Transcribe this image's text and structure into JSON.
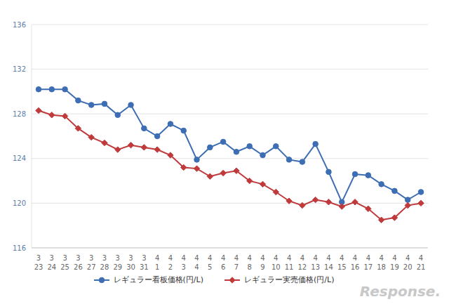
{
  "chart_data": {
    "type": "line",
    "categories": [
      "3\n23",
      "3\n24",
      "3\n25",
      "3\n26",
      "3\n27",
      "3\n28",
      "3\n29",
      "3\n30",
      "3\n31",
      "4\n1",
      "4\n2",
      "4\n3",
      "4\n4",
      "4\n5",
      "4\n6",
      "4\n7",
      "4\n8",
      "4\n9",
      "4\n10",
      "4\n11",
      "4\n12",
      "4\n13",
      "4\n14",
      "4\n15",
      "4\n16",
      "4\n17",
      "4\n18",
      "4\n19",
      "4\n20",
      "4\n21"
    ],
    "series": [
      {
        "name": "レギュラー看板価格(円/L)",
        "color": "#3d6eb4",
        "marker": "circle",
        "values": [
          130.2,
          130.2,
          130.2,
          129.2,
          128.8,
          128.9,
          127.9,
          128.8,
          126.7,
          126.0,
          127.1,
          126.5,
          123.9,
          125.0,
          125.5,
          124.6,
          125.1,
          124.3,
          125.1,
          123.9,
          123.7,
          125.3,
          122.8,
          120.1,
          122.6,
          122.5,
          121.7,
          121.1,
          120.3,
          121.0
        ]
      },
      {
        "name": "レギュラー実売価格(円/L)",
        "color": "#c0393b",
        "marker": "diamond",
        "values": [
          128.3,
          127.9,
          127.8,
          126.7,
          125.9,
          125.4,
          124.8,
          125.2,
          125.0,
          124.8,
          124.3,
          123.2,
          123.1,
          122.4,
          122.7,
          122.9,
          122.0,
          121.7,
          121.0,
          120.2,
          119.8,
          120.3,
          120.1,
          119.7,
          120.1,
          119.5,
          118.5,
          118.7,
          119.8,
          120.0
        ]
      }
    ],
    "ylim": [
      116,
      136
    ],
    "yticks": [
      116,
      120,
      124,
      128,
      132,
      136
    ],
    "grid": true,
    "legend": "bottom",
    "annotation": "Response."
  }
}
